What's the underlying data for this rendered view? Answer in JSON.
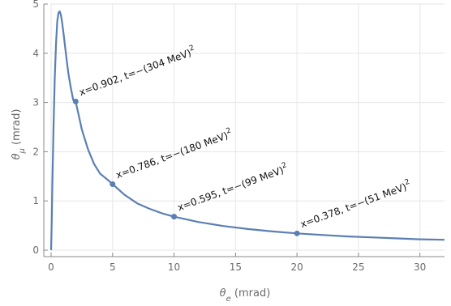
{
  "colors": {
    "curve": "#5b7fb4",
    "axis": "#888888",
    "grid": "#e6e6e6",
    "points": "#5b7fb4",
    "background": "#ffffff"
  },
  "chart_data": {
    "type": "line",
    "title": "",
    "xlabel": {
      "symbol": "θ",
      "subscript": "e",
      "unit": " (mrad)"
    },
    "ylabel": {
      "symbol": "θ",
      "subscript": "μ",
      "unit": " (mrad)"
    },
    "xlim": [
      0,
      32
    ],
    "ylim": [
      0,
      5
    ],
    "xticks": [
      "0",
      "5",
      "10",
      "15",
      "20",
      "25",
      "30"
    ],
    "yticks": [
      "0",
      "1",
      "2",
      "3",
      "4",
      "5"
    ],
    "grid": true,
    "legend": "none",
    "series": [
      {
        "x": [
          0,
          0.05,
          0.1,
          0.2,
          0.3,
          0.4,
          0.5,
          0.6,
          0.7,
          0.8,
          0.9,
          1.0,
          1.2,
          1.4,
          1.6,
          1.8,
          2.0,
          2.5,
          3.0,
          3.5,
          4.0,
          4.5,
          5.0,
          6.0,
          7.0,
          8.0,
          9.0,
          10.0,
          12.0,
          14.0,
          16.0,
          18.0,
          20.0,
          22.0,
          24.0,
          26.0,
          28.0,
          30.0,
          32.0
        ],
        "y": [
          0,
          0.6,
          1.3,
          2.5,
          3.5,
          4.2,
          4.65,
          4.82,
          4.85,
          4.78,
          4.62,
          4.42,
          4.0,
          3.6,
          3.3,
          3.05,
          3.02,
          2.45,
          2.05,
          1.75,
          1.55,
          1.45,
          1.34,
          1.12,
          0.95,
          0.84,
          0.75,
          0.68,
          0.57,
          0.49,
          0.43,
          0.38,
          0.34,
          0.31,
          0.28,
          0.26,
          0.24,
          0.22,
          0.21
        ]
      }
    ],
    "points": [
      {
        "x": 2,
        "y": 3.02,
        "label": "x=0.902, t=−(304 MeV)",
        "power": "2"
      },
      {
        "x": 5,
        "y": 1.34,
        "label": "x=0.786, t=−(180 MeV)",
        "power": "2"
      },
      {
        "x": 10,
        "y": 0.68,
        "label": "x=0.595, t=−(99 MeV)",
        "power": "2"
      },
      {
        "x": 20,
        "y": 0.34,
        "label": "x=0.378, t=−(51 MeV)",
        "power": "2"
      }
    ]
  }
}
